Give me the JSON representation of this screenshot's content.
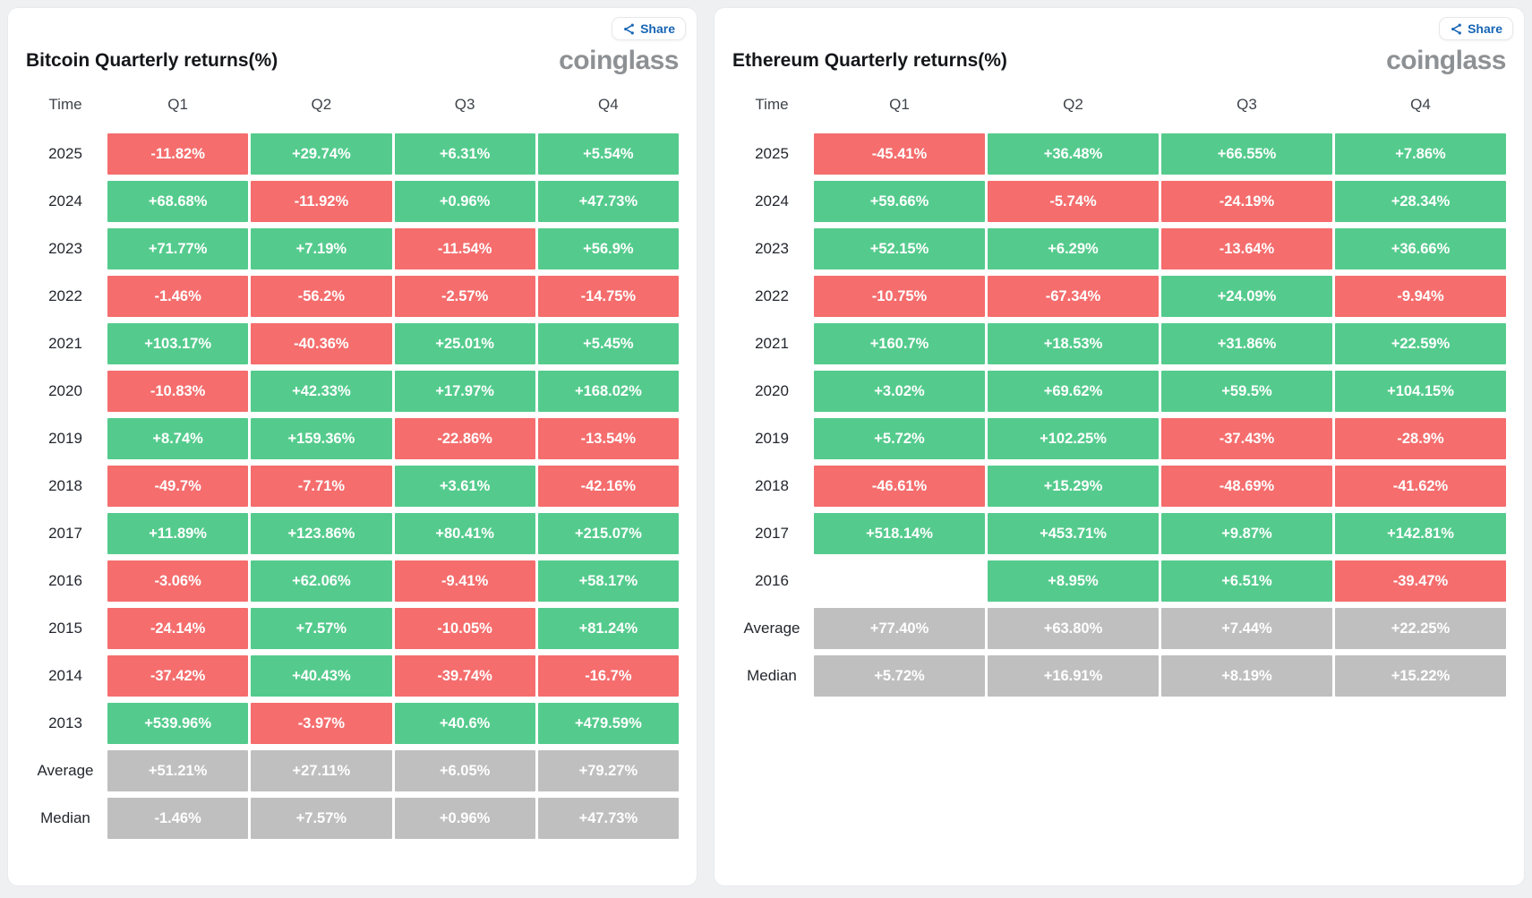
{
  "page": {
    "background": "#eff0f2"
  },
  "colors": {
    "positive_green": "#54cb8d",
    "negative_red": "#f56d6d",
    "summary_gray": "#bfbfbf",
    "share_blue": "#1765b5",
    "brand_gray": "#8e9194"
  },
  "panels": [
    {
      "brand": "coinglass",
      "share_label": "Share"
    },
    {
      "brand": "coinglass",
      "share_label": "Share"
    }
  ],
  "chart_data": [
    {
      "type": "table",
      "title": "Bitcoin Quarterly returns(%)",
      "columns": [
        "Time",
        "Q1",
        "Q2",
        "Q3",
        "Q4"
      ],
      "summary_rows": [
        "Average",
        "Median"
      ],
      "cell_colors": {
        "positive": "#54cb8d",
        "negative": "#f56d6d",
        "summary": "#bfbfbf"
      },
      "rows": [
        [
          "2025",
          "-11.82%",
          "+29.74%",
          "+6.31%",
          "+5.54%"
        ],
        [
          "2024",
          "+68.68%",
          "-11.92%",
          "+0.96%",
          "+47.73%"
        ],
        [
          "2023",
          "+71.77%",
          "+7.19%",
          "-11.54%",
          "+56.9%"
        ],
        [
          "2022",
          "-1.46%",
          "-56.2%",
          "-2.57%",
          "-14.75%"
        ],
        [
          "2021",
          "+103.17%",
          "-40.36%",
          "+25.01%",
          "+5.45%"
        ],
        [
          "2020",
          "-10.83%",
          "+42.33%",
          "+17.97%",
          "+168.02%"
        ],
        [
          "2019",
          "+8.74%",
          "+159.36%",
          "-22.86%",
          "-13.54%"
        ],
        [
          "2018",
          "-49.7%",
          "-7.71%",
          "+3.61%",
          "-42.16%"
        ],
        [
          "2017",
          "+11.89%",
          "+123.86%",
          "+80.41%",
          "+215.07%"
        ],
        [
          "2016",
          "-3.06%",
          "+62.06%",
          "-9.41%",
          "+58.17%"
        ],
        [
          "2015",
          "-24.14%",
          "+7.57%",
          "-10.05%",
          "+81.24%"
        ],
        [
          "2014",
          "-37.42%",
          "+40.43%",
          "-39.74%",
          "-16.7%"
        ],
        [
          "2013",
          "+539.96%",
          "-3.97%",
          "+40.6%",
          "+479.59%"
        ],
        [
          "Average",
          "+51.21%",
          "+27.11%",
          "+6.05%",
          "+79.27%"
        ],
        [
          "Median",
          "-1.46%",
          "+7.57%",
          "+0.96%",
          "+47.73%"
        ]
      ]
    },
    {
      "type": "table",
      "title": "Ethereum Quarterly returns(%)",
      "columns": [
        "Time",
        "Q1",
        "Q2",
        "Q3",
        "Q4"
      ],
      "summary_rows": [
        "Average",
        "Median"
      ],
      "cell_colors": {
        "positive": "#54cb8d",
        "negative": "#f56d6d",
        "summary": "#bfbfbf"
      },
      "rows": [
        [
          "2025",
          "-45.41%",
          "+36.48%",
          "+66.55%",
          "+7.86%"
        ],
        [
          "2024",
          "+59.66%",
          "-5.74%",
          "-24.19%",
          "+28.34%"
        ],
        [
          "2023",
          "+52.15%",
          "+6.29%",
          "-13.64%",
          "+36.66%"
        ],
        [
          "2022",
          "-10.75%",
          "-67.34%",
          "+24.09%",
          "-9.94%"
        ],
        [
          "2021",
          "+160.7%",
          "+18.53%",
          "+31.86%",
          "+22.59%"
        ],
        [
          "2020",
          "+3.02%",
          "+69.62%",
          "+59.5%",
          "+104.15%"
        ],
        [
          "2019",
          "+5.72%",
          "+102.25%",
          "-37.43%",
          "-28.9%"
        ],
        [
          "2018",
          "-46.61%",
          "+15.29%",
          "-48.69%",
          "-41.62%"
        ],
        [
          "2017",
          "+518.14%",
          "+453.71%",
          "+9.87%",
          "+142.81%"
        ],
        [
          "2016",
          "",
          "+8.95%",
          "+6.51%",
          "-39.47%"
        ],
        [
          "Average",
          "+77.40%",
          "+63.80%",
          "+7.44%",
          "+22.25%"
        ],
        [
          "Median",
          "+5.72%",
          "+16.91%",
          "+8.19%",
          "+15.22%"
        ]
      ]
    }
  ]
}
